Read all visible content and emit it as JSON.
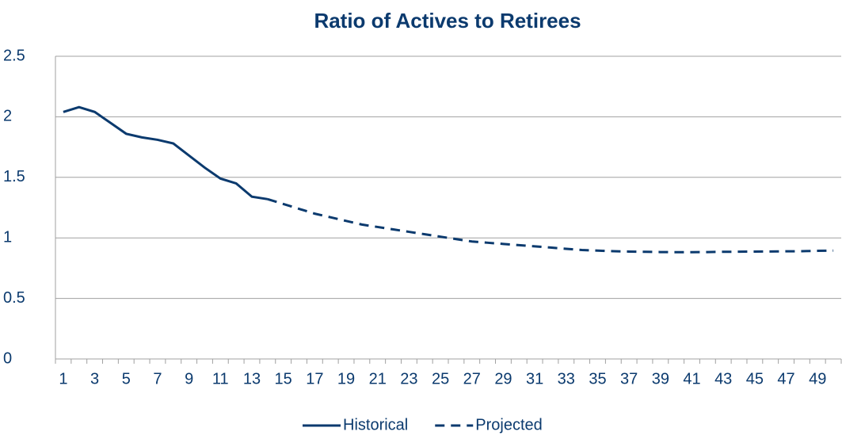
{
  "chart_data": {
    "type": "line",
    "title": "Ratio of Actives to Retirees",
    "categories": [
      "1",
      null,
      "3",
      null,
      "5",
      null,
      "7",
      null,
      "9",
      null,
      "11",
      null,
      "13",
      null,
      "15",
      null,
      "17",
      null,
      "19",
      null,
      "21",
      null,
      "23",
      null,
      "25",
      null,
      "27",
      null,
      "29",
      null,
      "31",
      null,
      "33",
      null,
      "35",
      null,
      "37",
      null,
      "39",
      null,
      "41",
      null,
      "43",
      null,
      "45",
      null,
      "47",
      null,
      "49",
      null
    ],
    "series": [
      {
        "name": "Historical",
        "color": "#0b3a6e",
        "dash": false,
        "values": [
          2.04,
          2.08,
          2.04,
          1.95,
          1.86,
          1.83,
          1.81,
          1.78,
          1.68,
          1.58,
          1.49,
          1.45,
          1.34,
          1.32,
          null,
          null,
          null,
          null,
          null,
          null,
          null,
          null,
          null,
          null,
          null,
          null,
          null,
          null,
          null,
          null,
          null,
          null,
          null,
          null,
          null,
          null,
          null,
          null,
          null,
          null,
          null,
          null,
          null,
          null,
          null,
          null,
          null,
          null,
          null,
          null
        ]
      },
      {
        "name": "Projected",
        "color": "#0b3a6e",
        "dash": true,
        "values": [
          null,
          null,
          null,
          null,
          null,
          null,
          null,
          null,
          null,
          null,
          null,
          null,
          null,
          1.32,
          1.28,
          1.24,
          1.2,
          1.17,
          1.14,
          1.11,
          1.09,
          1.07,
          1.05,
          1.03,
          1.01,
          0.99,
          0.97,
          0.96,
          0.95,
          0.94,
          0.93,
          0.92,
          0.91,
          0.9,
          0.895,
          0.89,
          0.887,
          0.885,
          0.883,
          0.882,
          0.882,
          0.883,
          0.885,
          0.886,
          0.887,
          0.888,
          0.889,
          0.89,
          0.893,
          0.895
        ]
      }
    ],
    "ylim": [
      0,
      2.5
    ],
    "yticks": [
      0,
      0.5,
      1,
      1.5,
      2,
      2.5
    ],
    "grid": true,
    "legend": "bottom"
  }
}
